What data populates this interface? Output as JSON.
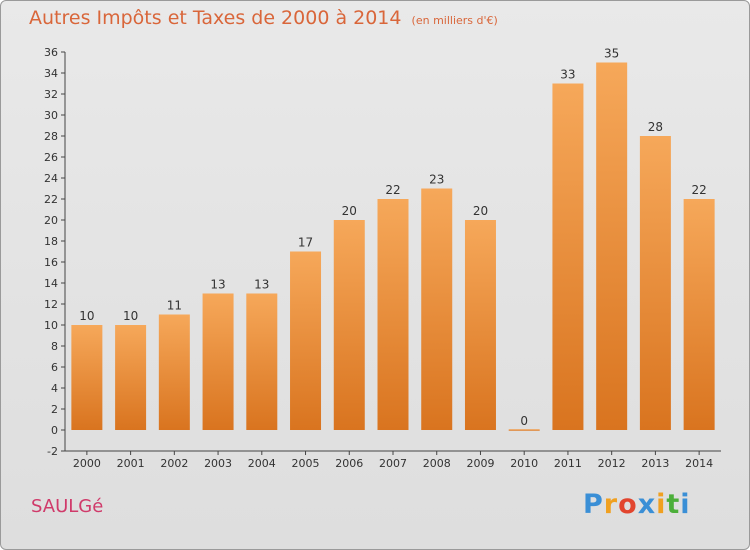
{
  "title": "Autres Impôts et Taxes de 2000 à 2014",
  "title_unit": "(en milliers d'€)",
  "commune": "SAULGé",
  "logo": {
    "letters": [
      "P",
      "r",
      "o",
      "x",
      "i",
      "t",
      "i"
    ],
    "colors": [
      "#3a8fd6",
      "#f0a020",
      "#e2452e",
      "#3a8fd6",
      "#f0a020",
      "#4caf3a",
      "#3a8fd6"
    ]
  },
  "colors": {
    "bar_top": "#f6a85a",
    "bar_bottom": "#d9741f",
    "title": "#d9663a",
    "commune": "#d03a6a"
  },
  "chart_data": {
    "type": "bar",
    "title": "Autres Impôts et Taxes de 2000 à 2014",
    "subtitle": "(en milliers d'€)",
    "categories": [
      "2000",
      "2001",
      "2002",
      "2003",
      "2004",
      "2005",
      "2006",
      "2007",
      "2008",
      "2009",
      "2010",
      "2011",
      "2012",
      "2013",
      "2014"
    ],
    "values": [
      10,
      10,
      11,
      13,
      13,
      17,
      20,
      22,
      23,
      20,
      0,
      33,
      35,
      28,
      22
    ],
    "data_labels": [
      "10",
      "10",
      "11",
      "13",
      "13",
      "17",
      "20",
      "22",
      "23",
      "20",
      "0",
      "33",
      "35",
      "28",
      "22"
    ],
    "y_ticks": [
      -2,
      0,
      2,
      4,
      6,
      8,
      10,
      12,
      14,
      16,
      18,
      20,
      22,
      24,
      26,
      28,
      30,
      32,
      34,
      36
    ],
    "ylim": [
      -2,
      36
    ],
    "grid": false,
    "xlabel": "",
    "ylabel": ""
  }
}
